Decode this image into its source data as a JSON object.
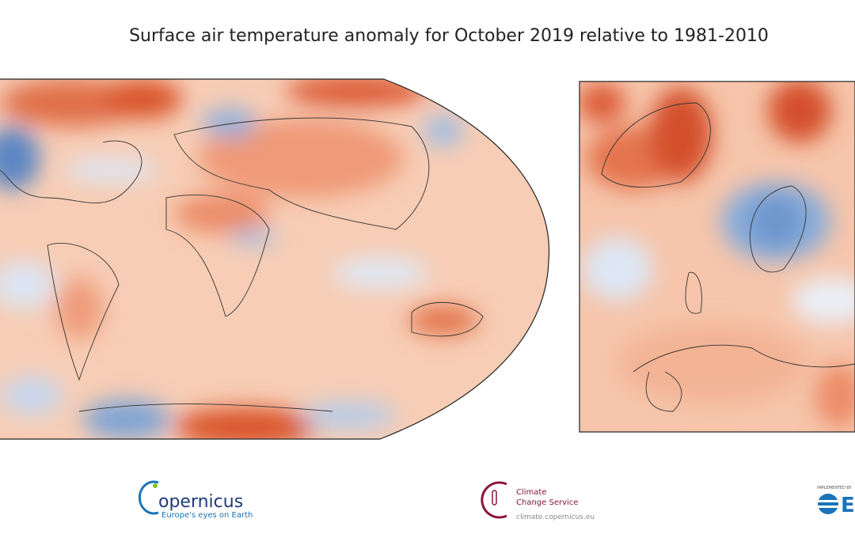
{
  "title": "Surface air temperature anomaly for October 2019 relative to 1981-2010",
  "logos": {
    "copernicus": {
      "name": "opernicus",
      "tagline": "Europe's eyes on Earth"
    },
    "c3s": {
      "line1": "Climate",
      "line2": "Change Service",
      "url": "climate.copernicus.eu"
    },
    "ecmwf": {
      "caption": "IMPLEMENTED BY",
      "name": "E"
    }
  }
}
